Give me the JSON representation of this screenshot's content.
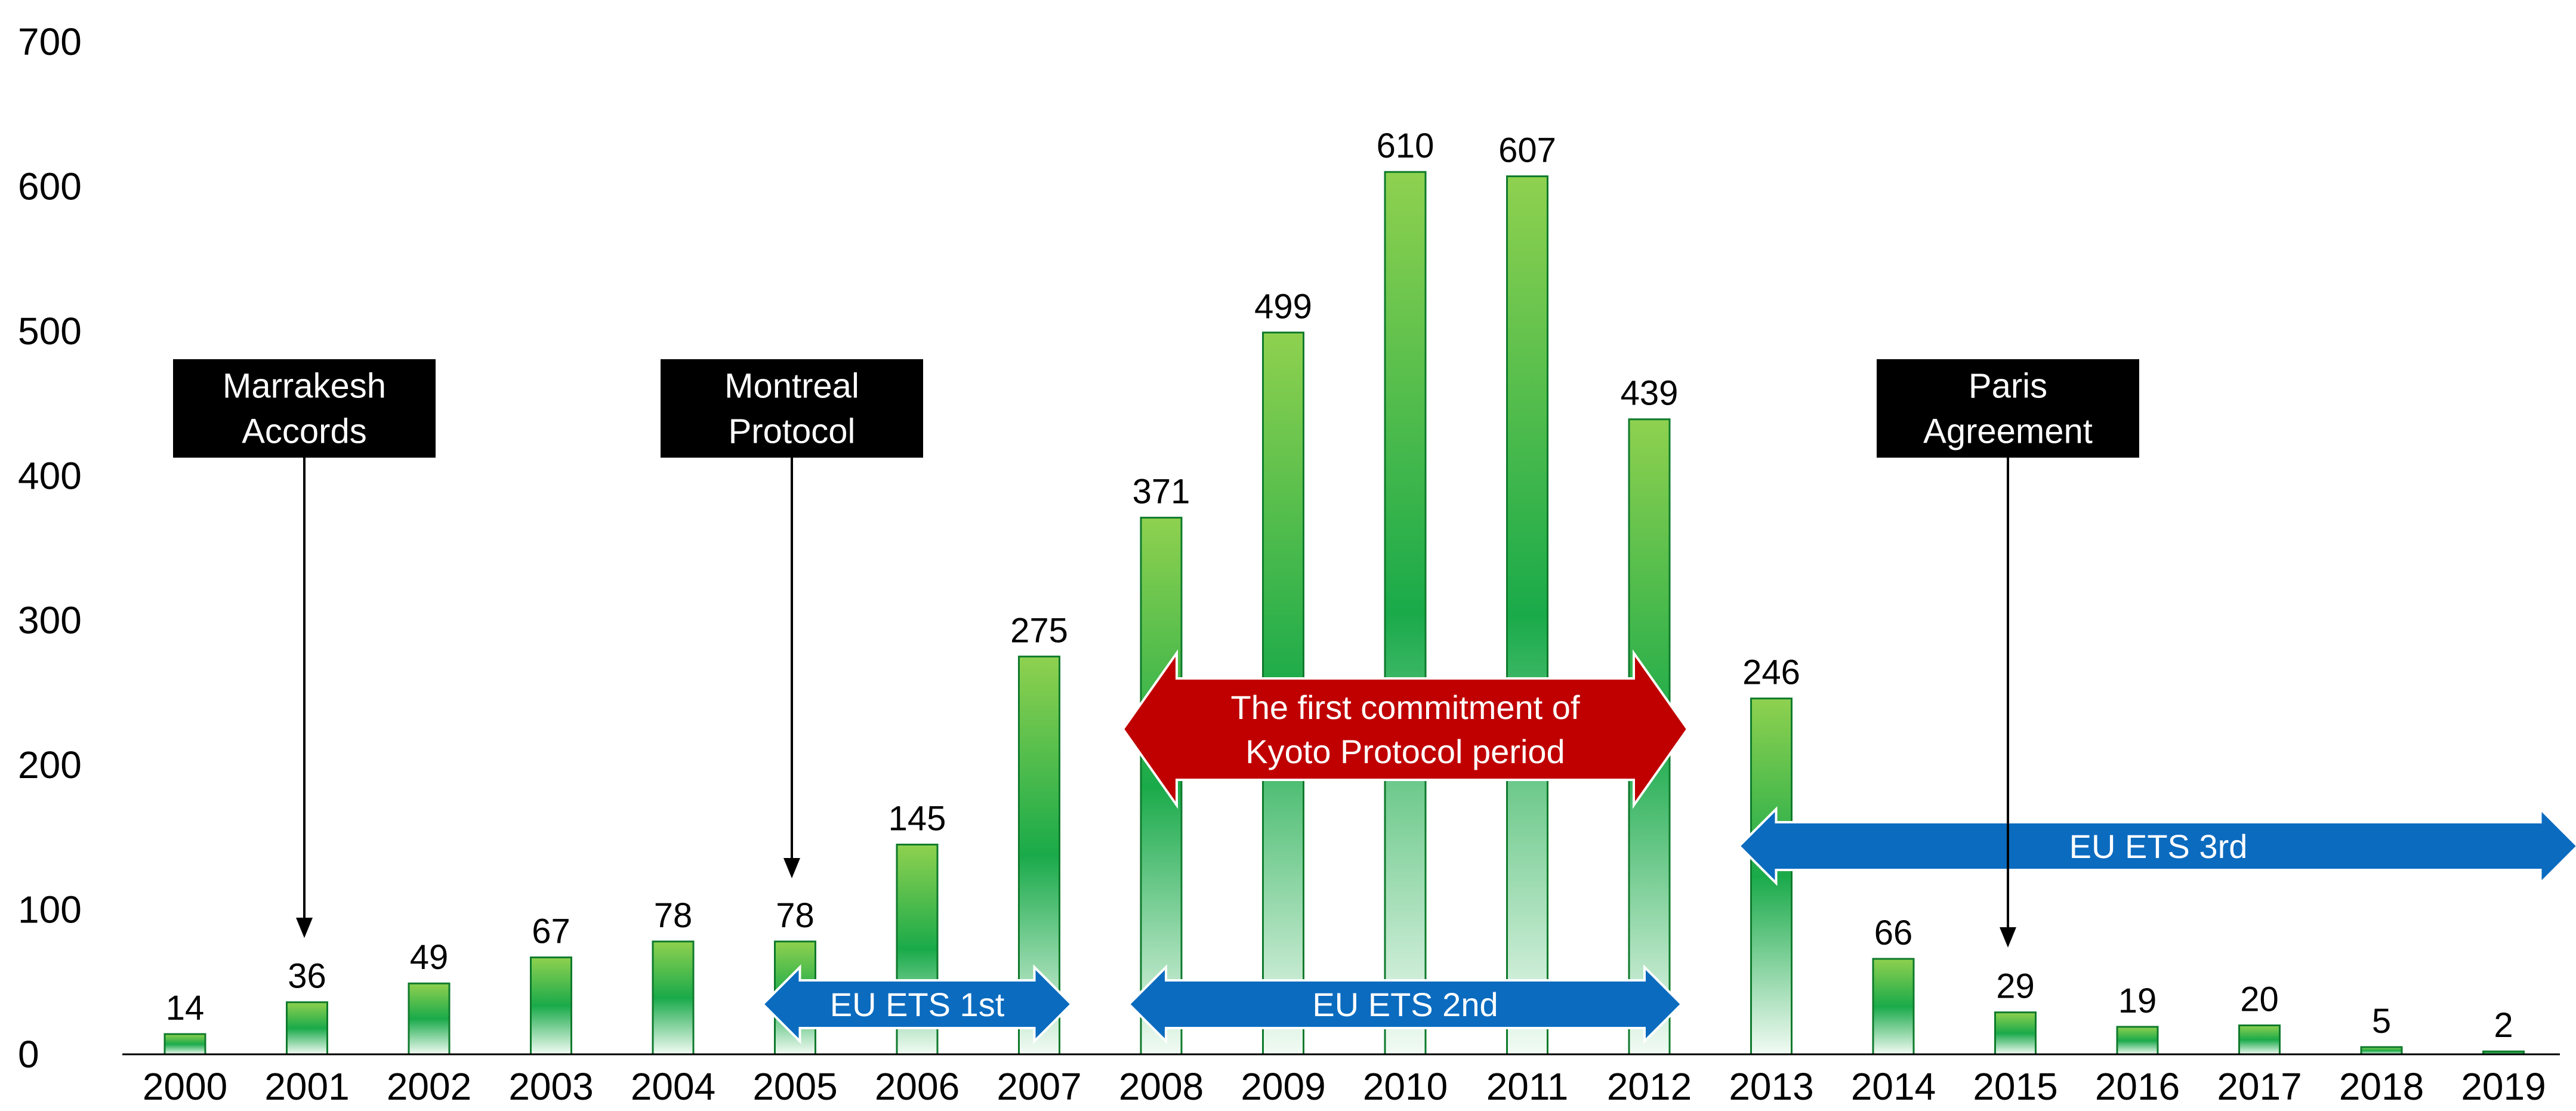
{
  "chart_data": {
    "type": "bar",
    "categories": [
      "2000",
      "2001",
      "2002",
      "2003",
      "2004",
      "2005",
      "2006",
      "2007",
      "2008",
      "2009",
      "2010",
      "2011",
      "2012",
      "2013",
      "2014",
      "2015",
      "2016",
      "2017",
      "2018",
      "2019"
    ],
    "values": [
      14,
      36,
      49,
      67,
      78,
      78,
      145,
      275,
      371,
      499,
      610,
      607,
      439,
      246,
      66,
      29,
      19,
      20,
      5,
      2
    ],
    "ylim": [
      0,
      700
    ],
    "yticks": [
      0,
      100,
      200,
      300,
      400,
      500,
      600,
      700
    ],
    "grid": false,
    "title": "",
    "xlabel": "",
    "ylabel": "",
    "bar_gradient": {
      "top": "#8fd14f",
      "middle": "#1aaa4a",
      "bottom": "#f2fbf4"
    },
    "annotations": {
      "boxes": [
        {
          "name": "marrakesh-accords-box",
          "lines": [
            "Marrakesh",
            "Accords"
          ],
          "points_to": "2001",
          "color": "#000000"
        },
        {
          "name": "montreal-protocol-box",
          "lines": [
            "Montreal",
            "Protocol"
          ],
          "points_to": "2005",
          "color": "#000000"
        },
        {
          "name": "paris-agreement-box",
          "lines": [
            "Paris",
            "Agreement"
          ],
          "points_to": "2015",
          "color": "#000000"
        }
      ],
      "arrows": [
        {
          "name": "eu-ets-1st-arrow",
          "lines": [
            "EU ETS 1st"
          ],
          "from": "2005",
          "to": "2007",
          "color": "#0b6bbf"
        },
        {
          "name": "eu-ets-2nd-arrow",
          "lines": [
            "EU ETS 2nd"
          ],
          "from": "2008",
          "to": "2012",
          "color": "#0b6bbf"
        },
        {
          "name": "eu-ets-3rd-arrow",
          "lines": [
            "EU ETS 3rd"
          ],
          "from": "2013",
          "to": "2019",
          "color": "#0b6bbf"
        },
        {
          "name": "kyoto-first-commitment-arrow",
          "lines": [
            "The first commitment of",
            "Kyoto Protocol period"
          ],
          "from": "2008",
          "to": "2012",
          "color": "#c00000"
        }
      ]
    }
  }
}
